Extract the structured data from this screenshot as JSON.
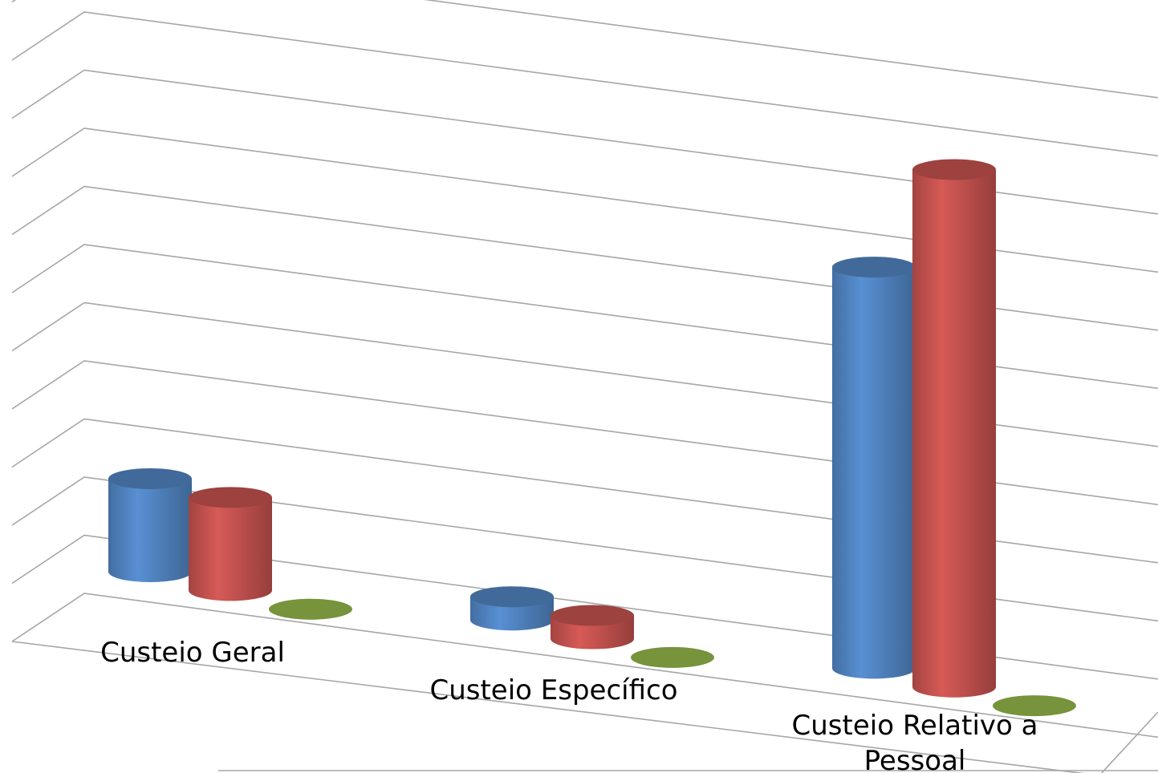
{
  "chart_data": {
    "type": "bar",
    "style": "3d-cylinder",
    "title": "",
    "xlabel": "",
    "ylabel": "",
    "categories": [
      "Custeio Geral",
      "Custeio Específico",
      "Custeio Relativo a Pessoal"
    ],
    "category_lines": [
      [
        "Custeio Geral"
      ],
      [
        "Custeio Específico"
      ],
      [
        "Custeio Relativo a",
        "Pessoal"
      ]
    ],
    "series": [
      {
        "values": [
          1.6,
          0.4,
          6.9
        ],
        "color": "#4f81bd"
      },
      {
        "values": [
          1.6,
          0.4,
          8.9
        ],
        "color": "#c0504d"
      },
      {
        "values": [
          0,
          0,
          0
        ],
        "color": "#77933c"
      }
    ],
    "ylim": [
      0,
      11
    ],
    "gridlines": 11,
    "grid": true,
    "legend": "none"
  }
}
